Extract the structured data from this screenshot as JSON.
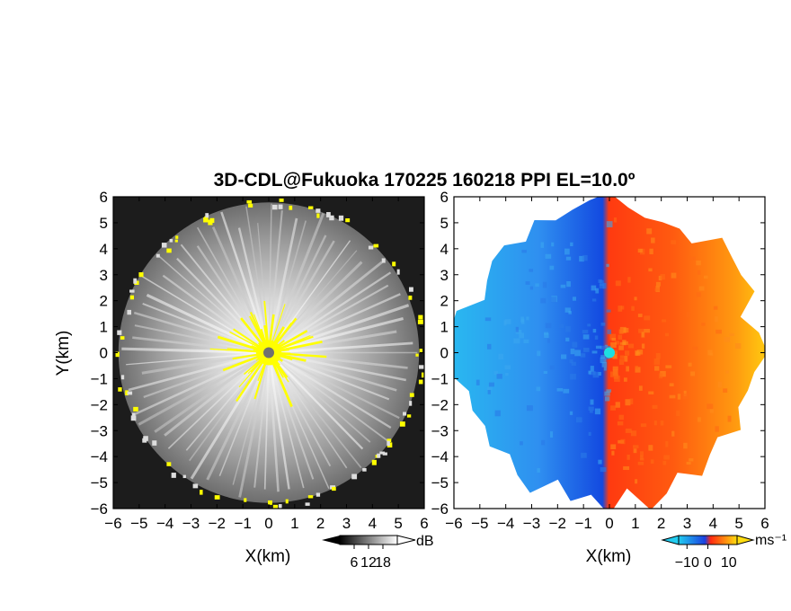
{
  "chart_data": [
    {
      "type": "heatmap",
      "panel": "reflectivity",
      "title": "3D-CDL@Fukuoka 170225 160218 PPI EL=10.0º",
      "xlabel": "X(km)",
      "ylabel": "Y(km)",
      "xlim": [
        -6,
        6
      ],
      "ylim": [
        -6,
        6
      ],
      "x_ticks": [
        -6,
        -5,
        -4,
        -3,
        -2,
        -1,
        0,
        1,
        2,
        3,
        4,
        5,
        6
      ],
      "y_ticks": [
        -6,
        -5,
        -4,
        -3,
        -2,
        -1,
        0,
        1,
        2,
        3,
        4,
        5,
        6
      ],
      "radar_center": [
        0,
        0
      ],
      "echo_radius_km": 5.8,
      "colormap": "grayscale",
      "colorbar": {
        "unit": "dB",
        "ticks": [
          6,
          12,
          18
        ]
      },
      "colors": {
        "background": "#1a1a1a",
        "clutter": "#ffff00",
        "center_marker": "#707070"
      }
    },
    {
      "type": "heatmap",
      "panel": "doppler_velocity",
      "xlabel": "X(km)",
      "ylabel": "",
      "xlim": [
        -6,
        6
      ],
      "ylim": [
        -6,
        6
      ],
      "x_ticks": [
        -6,
        -5,
        -4,
        -3,
        -2,
        -1,
        0,
        1,
        2,
        3,
        4,
        5,
        6
      ],
      "y_ticks": [
        -6,
        -5,
        -4,
        -3,
        -2,
        -1,
        0,
        1,
        2,
        3,
        4,
        5,
        6
      ],
      "radar_center": [
        0,
        0
      ],
      "colormap": "diverging blue-red",
      "colorbar": {
        "unit": "ms⁻¹",
        "ticks": [
          -10,
          0,
          10
        ]
      },
      "colors": {
        "negative": "#1e64e6",
        "positive": "#ff4a10",
        "center_marker": "#1ee0e0"
      }
    }
  ]
}
